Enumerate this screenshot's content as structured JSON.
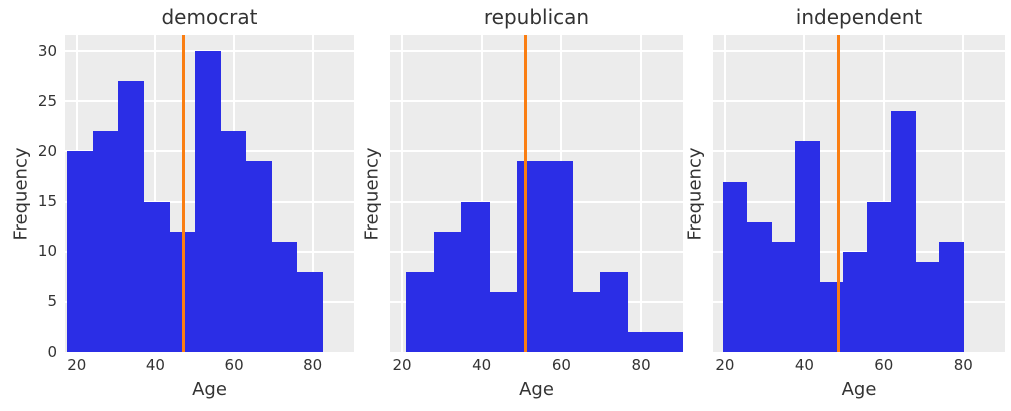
{
  "style": {
    "figure_bg": "#ffffff",
    "panel_bg": "#ececec",
    "grid_color": "#ffffff",
    "bar_color": "#2b2ee6",
    "vline_color": "#fa7e12",
    "text_color": "#333333"
  },
  "chart_data": [
    {
      "type": "bar",
      "subtype": "histogram",
      "title": "democrat",
      "xlabel": "Age",
      "ylabel": "Frequency",
      "bin_start": 17.5,
      "bin_width": 6.5,
      "counts": [
        20,
        22,
        27,
        15,
        12,
        30,
        22,
        19,
        11,
        8
      ],
      "vline_x": 47,
      "xlim": [
        17,
        90.5
      ],
      "ylim": [
        0,
        31.6
      ],
      "xticks": [
        20,
        40,
        60,
        80
      ],
      "yticks": [
        0,
        5,
        10,
        15,
        20,
        25,
        30
      ],
      "show_ytick_labels": true,
      "grid": true,
      "legend": null
    },
    {
      "type": "bar",
      "subtype": "histogram",
      "title": "republican",
      "xlabel": "Age",
      "ylabel": "Frequency",
      "bin_start": 21,
      "bin_width": 6.95,
      "counts": [
        8,
        12,
        15,
        6,
        19,
        19,
        6,
        8,
        2,
        2
      ],
      "vline_x": 51,
      "xlim": [
        17,
        90.5
      ],
      "ylim": [
        0,
        31.6
      ],
      "xticks": [
        20,
        40,
        60,
        80
      ],
      "yticks": [
        0,
        5,
        10,
        15,
        20,
        25,
        30
      ],
      "show_ytick_labels": false,
      "grid": true,
      "legend": null
    },
    {
      "type": "bar",
      "subtype": "histogram",
      "title": "independent",
      "xlabel": "Age",
      "ylabel": "Frequency",
      "bin_start": 19.5,
      "bin_width": 6.05,
      "counts": [
        17,
        13,
        11,
        21,
        7,
        10,
        15,
        24,
        9,
        11
      ],
      "vline_x": 48.5,
      "xlim": [
        17,
        90.5
      ],
      "ylim": [
        0,
        31.6
      ],
      "xticks": [
        20,
        40,
        60,
        80
      ],
      "yticks": [
        0,
        5,
        10,
        15,
        20,
        25,
        30
      ],
      "show_ytick_labels": false,
      "grid": true,
      "legend": null
    }
  ]
}
